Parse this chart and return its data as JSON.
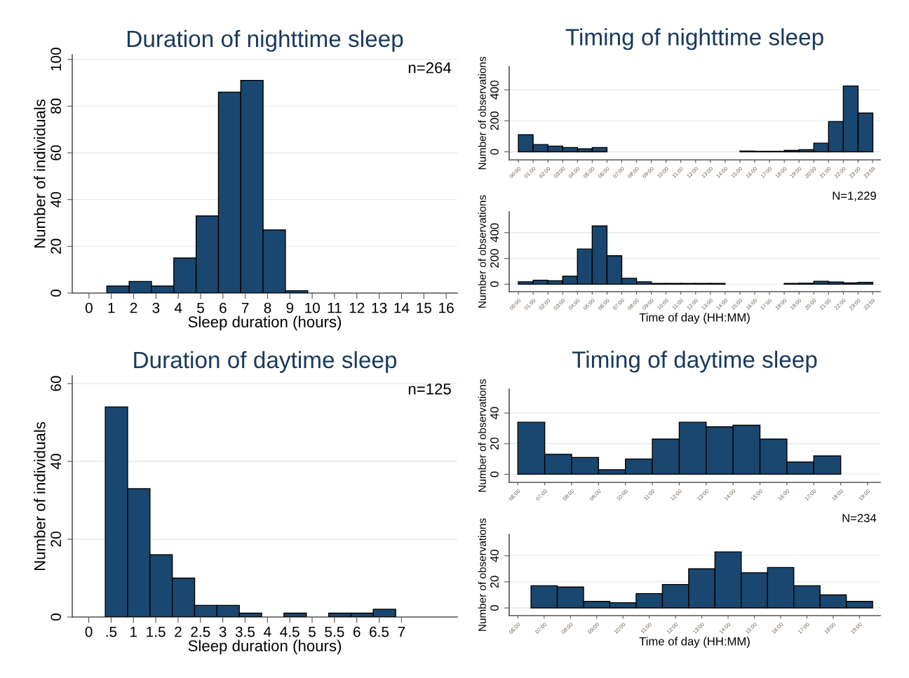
{
  "chart_data": [
    {
      "type": "histogram",
      "title": "Duration of nighttime sleep",
      "xlabel": "Sleep duration (hours)",
      "ylabel": "Number of individuals",
      "annotations": [
        "n=264"
      ],
      "color": "#1a476f",
      "grid": "y",
      "bins": [
        0.8,
        1.8,
        2.8,
        3.8,
        4.8,
        5.8,
        6.8,
        7.8,
        8.8,
        9.8
      ],
      "values": [
        3,
        5,
        3,
        15,
        33,
        86,
        91,
        27,
        1
      ],
      "xlim": [
        -0.75,
        16.5
      ],
      "xticks": [
        0,
        1,
        2,
        3,
        4,
        5,
        6,
        7,
        8,
        9,
        10,
        11,
        12,
        13,
        14,
        15,
        16
      ],
      "ylim": [
        0,
        102
      ],
      "yticks": [
        0,
        20,
        40,
        60,
        80,
        100
      ]
    },
    {
      "type": "histogram",
      "title": "Timing of nighttime sleep",
      "ylabel": "Number of observations",
      "color": "#1a476f",
      "grid": "y",
      "bins": [
        0,
        1,
        2,
        3,
        4,
        5,
        6,
        7,
        8,
        9,
        10,
        11,
        12,
        13,
        14,
        15,
        16,
        17,
        18,
        19,
        20,
        21,
        22,
        23,
        24
      ],
      "values": [
        110,
        47,
        37,
        28,
        19,
        28,
        0,
        0,
        0,
        0,
        0,
        0,
        0,
        0,
        0,
        5,
        3,
        3,
        9,
        14,
        56,
        195,
        425,
        250
      ],
      "xlim": [
        -0.62,
        24.5
      ],
      "xticks": [
        {
          "value": 0,
          "label": "00:00"
        },
        {
          "value": 1,
          "label": "01:00"
        },
        {
          "value": 2,
          "label": "02:00"
        },
        {
          "value": 3,
          "label": "03:00"
        },
        {
          "value": 4,
          "label": "04:00"
        },
        {
          "value": 5,
          "label": "05:00"
        },
        {
          "value": 6,
          "label": "06:00"
        },
        {
          "value": 7,
          "label": "07:00"
        },
        {
          "value": 8,
          "label": "08:00"
        },
        {
          "value": 9,
          "label": "09:00"
        },
        {
          "value": 10,
          "label": "10:00"
        },
        {
          "value": 11,
          "label": "11:00"
        },
        {
          "value": 12,
          "label": "12:00"
        },
        {
          "value": 13,
          "label": "13:00"
        },
        {
          "value": 14,
          "label": "14:00"
        },
        {
          "value": 15,
          "label": "15:00"
        },
        {
          "value": 16,
          "label": "16:00"
        },
        {
          "value": 17,
          "label": "17:00"
        },
        {
          "value": 18,
          "label": "18:00"
        },
        {
          "value": 19,
          "label": "19:00"
        },
        {
          "value": 20,
          "label": "20:00"
        },
        {
          "value": 21,
          "label": "21:00"
        },
        {
          "value": 22,
          "label": "22:00"
        },
        {
          "value": 23,
          "label": "23:00"
        },
        {
          "value": 23.983,
          "label": "23:59"
        }
      ],
      "ylim": [
        -52,
        550
      ],
      "yticks": [
        0,
        200,
        400
      ]
    },
    {
      "type": "histogram",
      "xlabel": "Time of day (HH:MM)",
      "ylabel": "Number of observations",
      "annotations": [
        "N=1,229"
      ],
      "color": "#1a476f",
      "grid": "y",
      "bins": [
        0,
        1,
        2,
        3,
        4,
        5,
        6,
        7,
        8,
        9,
        10,
        11,
        12,
        13,
        14,
        15,
        16,
        17,
        18,
        19,
        20,
        21,
        22,
        23,
        24
      ],
      "values": [
        19,
        31,
        27,
        62,
        273,
        452,
        221,
        46,
        19,
        6,
        6,
        6,
        6,
        6,
        0,
        0,
        0,
        0,
        6,
        8,
        23,
        17,
        10,
        15
      ],
      "xlim": [
        -0.62,
        24.5
      ],
      "xticks": [
        {
          "value": 0,
          "label": "00:00"
        },
        {
          "value": 1,
          "label": "01:00"
        },
        {
          "value": 2,
          "label": "02:00"
        },
        {
          "value": 3,
          "label": "03:00"
        },
        {
          "value": 4,
          "label": "04:00"
        },
        {
          "value": 5,
          "label": "05:00"
        },
        {
          "value": 6,
          "label": "06:00"
        },
        {
          "value": 7,
          "label": "07:00"
        },
        {
          "value": 8,
          "label": "08:00"
        },
        {
          "value": 9,
          "label": "09:00"
        },
        {
          "value": 10,
          "label": "10:00"
        },
        {
          "value": 11,
          "label": "11:00"
        },
        {
          "value": 12,
          "label": "12:00"
        },
        {
          "value": 13,
          "label": "13:00"
        },
        {
          "value": 14,
          "label": "14:00"
        },
        {
          "value": 15,
          "label": "15:00"
        },
        {
          "value": 16,
          "label": "16:00"
        },
        {
          "value": 17,
          "label": "17:00"
        },
        {
          "value": 18,
          "label": "18:00"
        },
        {
          "value": 19,
          "label": "19:00"
        },
        {
          "value": 20,
          "label": "20:00"
        },
        {
          "value": 21,
          "label": "21:00"
        },
        {
          "value": 22,
          "label": "22:00"
        },
        {
          "value": 23,
          "label": "23:00"
        },
        {
          "value": 23.983,
          "label": "23:59"
        }
      ],
      "ylim": [
        -58,
        562
      ],
      "yticks": [
        0,
        200,
        400
      ]
    },
    {
      "type": "histogram",
      "title": "Duration of daytime sleep",
      "xlabel": "Sleep duration (hours)",
      "ylabel": "Number of individuals",
      "annotations": [
        "n=125"
      ],
      "color": "#1a476f",
      "grid": "y",
      "bins": [
        0.37,
        0.87,
        1.37,
        1.87,
        2.37,
        2.87,
        3.37,
        3.87,
        4.37,
        4.87,
        5.37,
        5.87,
        6.37,
        6.87
      ],
      "values": [
        54,
        33,
        16,
        10,
        3,
        3,
        1,
        0,
        1,
        0,
        1,
        1,
        2
      ],
      "xlim": [
        -0.37,
        8.25
      ],
      "xticks": [
        0,
        {
          "value": 0.5,
          "label": ".5"
        },
        1,
        1.5,
        2,
        2.5,
        3,
        3.5,
        4,
        4.5,
        5,
        5.5,
        6,
        6.5,
        7
      ],
      "ylim": [
        0,
        62
      ],
      "yticks": [
        0,
        20,
        40,
        60
      ]
    },
    {
      "type": "histogram",
      "title": "Timing of daytime sleep",
      "ylabel": "Number of observations",
      "color": "#1a476f",
      "grid": "y",
      "bins": [
        6,
        7,
        8,
        9,
        10,
        11,
        12,
        13,
        14,
        15,
        16,
        17,
        18
      ],
      "values": [
        34,
        13,
        11,
        3,
        10,
        23,
        34,
        31,
        32,
        23,
        8,
        12
      ],
      "xlim": [
        5.68,
        19.47
      ],
      "xticks": [
        {
          "value": 6,
          "label": "06:00"
        },
        {
          "value": 7,
          "label": "07:00"
        },
        {
          "value": 8,
          "label": "08:00"
        },
        {
          "value": 9,
          "label": "09:00"
        },
        {
          "value": 10,
          "label": "10:00"
        },
        {
          "value": 11,
          "label": "11:00"
        },
        {
          "value": 12,
          "label": "12:00"
        },
        {
          "value": 13,
          "label": "13:00"
        },
        {
          "value": 14,
          "label": "14:00"
        },
        {
          "value": 15,
          "label": "15:00"
        },
        {
          "value": 16,
          "label": "16:00"
        },
        {
          "value": 17,
          "label": "17:00"
        },
        {
          "value": 18,
          "label": "18:00"
        },
        {
          "value": 19,
          "label": "19:00"
        }
      ],
      "ylim": [
        -5.3,
        55.6
      ],
      "yticks": [
        0,
        20,
        40
      ]
    },
    {
      "type": "histogram",
      "xlabel": "Time of day (HH:MM)",
      "ylabel": "Number of observations",
      "annotations": [
        "N=234"
      ],
      "color": "#1a476f",
      "grid": "y",
      "bins": [
        6.5,
        7.5,
        8.5,
        9.5,
        10.5,
        11.5,
        12.5,
        13.5,
        14.5,
        15.5,
        16.5,
        17.5,
        18.5,
        19.5
      ],
      "values": [
        17,
        16,
        5,
        4,
        11,
        18,
        30,
        43,
        27,
        31,
        17,
        10,
        5
      ],
      "xlim": [
        5.67,
        19.79
      ],
      "xticks": [
        {
          "value": 6,
          "label": "06:00"
        },
        {
          "value": 7,
          "label": "07:00"
        },
        {
          "value": 8,
          "label": "08:00"
        },
        {
          "value": 9,
          "label": "09:00"
        },
        {
          "value": 10,
          "label": "10:00"
        },
        {
          "value": 11,
          "label": "11:00"
        },
        {
          "value": 12,
          "label": "12:00"
        },
        {
          "value": 13,
          "label": "13:00"
        },
        {
          "value": 14,
          "label": "14:00"
        },
        {
          "value": 15,
          "label": "15:00"
        },
        {
          "value": 16,
          "label": "16:00"
        },
        {
          "value": 17,
          "label": "17:00"
        },
        {
          "value": 18,
          "label": "18:00"
        },
        {
          "value": 19,
          "label": "19:00"
        }
      ],
      "ylim": [
        -5.9,
        56.5
      ],
      "yticks": [
        0,
        20,
        40
      ]
    }
  ]
}
